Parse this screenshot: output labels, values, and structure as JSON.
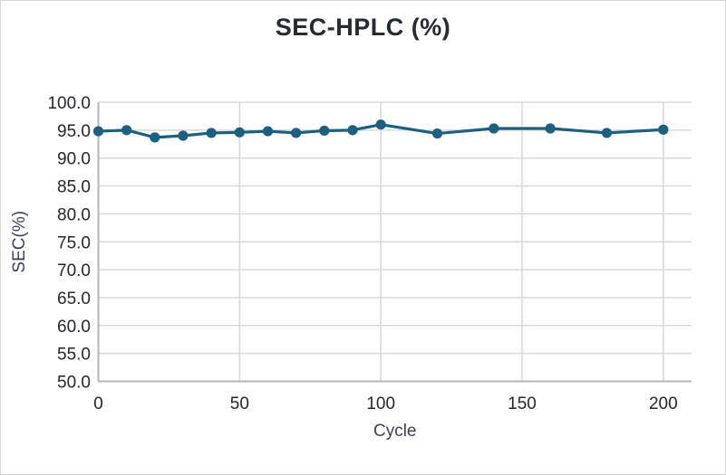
{
  "chart_data": {
    "type": "line",
    "title": "SEC-HPLC (%)",
    "xlabel": "Cycle",
    "ylabel": "SEC(%)",
    "x": [
      0,
      10,
      20,
      30,
      40,
      50,
      60,
      70,
      80,
      90,
      100,
      120,
      140,
      160,
      180,
      200
    ],
    "values": [
      94.8,
      95.0,
      93.7,
      94.0,
      94.5,
      94.6,
      94.8,
      94.5,
      94.9,
      95.0,
      96.0,
      94.4,
      95.3,
      95.3,
      94.5,
      95.1
    ],
    "xlim": [
      0,
      210
    ],
    "ylim": [
      50,
      100
    ],
    "xticks": [
      0,
      50,
      100,
      150,
      200
    ],
    "yticks": [
      50.0,
      55.0,
      60.0,
      65.0,
      70.0,
      75.0,
      80.0,
      85.0,
      90.0,
      95.0,
      100.0
    ],
    "ytick_labels": [
      "50.0",
      "55.0",
      "60.0",
      "65.0",
      "70.0",
      "75.0",
      "80.0",
      "85.0",
      "90.0",
      "95.0",
      "100.0"
    ],
    "grid": true,
    "legend_position": "none",
    "line_color": "#1d5f80",
    "marker": "circle",
    "marker_color": "#1d5f80",
    "grid_color": "#d9d9d9",
    "axis_line_color": "#b6b6b6",
    "title_color": "#262a33",
    "tick_label_color": "#24262e",
    "axis_title_color": "#3c4254"
  }
}
